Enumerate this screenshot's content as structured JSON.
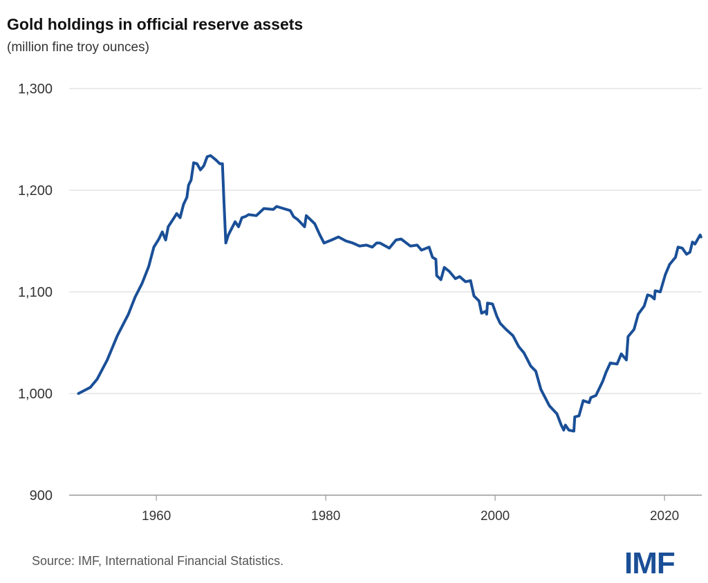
{
  "chart_data": {
    "type": "line",
    "title": "Gold holdings in official reserve assets",
    "subtitle": "(million fine troy ounces)",
    "xlabel": "",
    "ylabel": "",
    "xlim": [
      1949.7,
      2024.4
    ],
    "ylim": [
      900,
      1300
    ],
    "x_ticks": [
      1960,
      1980,
      2000,
      2020
    ],
    "x_tick_labels": [
      "1960",
      "1980",
      "2000",
      "2020"
    ],
    "y_ticks": [
      900,
      1000,
      1100,
      1200,
      1300
    ],
    "y_tick_labels": [
      "900",
      "1,000",
      "1,100",
      "1,200",
      "1,300"
    ],
    "grid": "horizontal",
    "legend": "none",
    "series": [
      {
        "color": "#1a4f97",
        "x": [
          1950.8,
          1952.2,
          1953.0,
          1954.2,
          1955.4,
          1956.7,
          1957.5,
          1958.3,
          1959.1,
          1959.7,
          1960.3,
          1960.7,
          1961.1,
          1961.4,
          1962.1,
          1962.4,
          1962.8,
          1963.2,
          1963.6,
          1963.8,
          1964.1,
          1964.4,
          1964.8,
          1965.2,
          1965.6,
          1966.0,
          1966.4,
          1967.0,
          1967.5,
          1967.8,
          1968.0,
          1968.2,
          1968.5,
          1969.3,
          1969.7,
          1970.1,
          1970.5,
          1970.9,
          1971.8,
          1972.7,
          1973.8,
          1974.2,
          1975.0,
          1975.8,
          1976.2,
          1976.7,
          1977.5,
          1977.7,
          1978.7,
          1979.3,
          1979.8,
          1980.7,
          1981.5,
          1982.4,
          1983.2,
          1984.0,
          1984.8,
          1985.5,
          1986.0,
          1986.4,
          1987.5,
          1988.3,
          1988.9,
          1990.0,
          1990.8,
          1991.3,
          1992.2,
          1992.6,
          1993.0,
          1993.1,
          1993.6,
          1994.0,
          1994.6,
          1995.3,
          1995.8,
          1996.5,
          1997.1,
          1997.5,
          1998.1,
          1998.4,
          1998.9,
          1999.0,
          1999.1,
          1999.7,
          2000.2,
          2000.6,
          2001.3,
          2002.1,
          2002.8,
          2003.4,
          2004.2,
          2004.8,
          2005.4,
          2006.4,
          2007.3,
          2007.8,
          2008.1,
          2008.3,
          2008.7,
          2009.3,
          2009.4,
          2009.9,
          2010.4,
          2011.1,
          2011.3,
          2011.9,
          2012.7,
          2013.1,
          2013.6,
          2014.4,
          2014.9,
          2015.5,
          2015.7,
          2016.4,
          2016.9,
          2017.6,
          2018.0,
          2018.4,
          2018.8,
          2018.9,
          2019.5,
          2020.1,
          2020.6,
          2021.3,
          2021.6,
          2022.1,
          2022.6,
          2023.0,
          2023.3,
          2023.6,
          2024.2,
          2024.3
        ],
        "values": [
          1000,
          1006,
          1014,
          1033,
          1057,
          1078,
          1095,
          1108,
          1125,
          1144,
          1152,
          1159,
          1151,
          1164,
          1173,
          1177,
          1173,
          1186,
          1193,
          1205,
          1210,
          1227,
          1226,
          1220,
          1224,
          1233,
          1234,
          1230,
          1226,
          1226,
          1184,
          1148,
          1156,
          1169,
          1164,
          1173,
          1174,
          1176,
          1175,
          1182,
          1181,
          1184,
          1182,
          1180,
          1174,
          1171,
          1164,
          1175,
          1167,
          1156,
          1148,
          1151,
          1154,
          1150,
          1148,
          1145,
          1146,
          1144,
          1148,
          1148,
          1143,
          1151,
          1152,
          1145,
          1146,
          1141,
          1144,
          1134,
          1132,
          1116,
          1112,
          1124,
          1120,
          1113,
          1115,
          1110,
          1111,
          1096,
          1091,
          1079,
          1081,
          1078,
          1089,
          1088,
          1076,
          1069,
          1063,
          1057,
          1046,
          1040,
          1027,
          1022,
          1004,
          988,
          980,
          969,
          964,
          969,
          964,
          963,
          977,
          978,
          993,
          991,
          996,
          998,
          1012,
          1021,
          1030,
          1029,
          1039,
          1033,
          1056,
          1063,
          1078,
          1086,
          1097,
          1096,
          1093,
          1101,
          1100,
          1117,
          1127,
          1134,
          1144,
          1143,
          1137,
          1139,
          1149,
          1147,
          1156,
          1154
        ]
      }
    ]
  },
  "source": "Source: IMF, International Financial Statistics.",
  "logo_text": "IMF"
}
